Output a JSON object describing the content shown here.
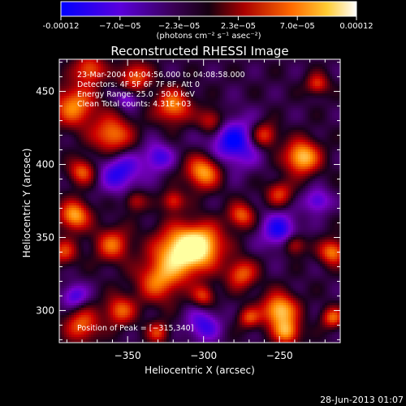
{
  "colorbar": {
    "ticks": [
      "-0.00012",
      "−7.0e−05",
      "−2.3e−05",
      "2.3e−05",
      "7.0e−05",
      "0.00012"
    ],
    "units": "(photons cm⁻² s⁻¹ asec⁻²)"
  },
  "title": "Reconstructed RHESSI Image",
  "annotations": {
    "time_range": "23-Mar-2004 04:04:56.000 to 04:08:58.000",
    "detectors": "Detectors: 4F 5F 6F 7F 8F, Att 0",
    "energy_range": "Energy Range: 25.0 - 50.0 keV",
    "clean_info": "Clean     Total counts: 4.31E+03",
    "peak_position": "Position of Peak = [−315,340]"
  },
  "footer_date": "28-Jun-2013 01:07",
  "chart_data": {
    "type": "heatmap",
    "title": "Reconstructed RHESSI Image",
    "xlabel": "Heliocentric X (arcsec)",
    "ylabel": "Heliocentric Y (arcsec)",
    "xlim": [
      -395,
      -210
    ],
    "ylim": [
      278,
      472
    ],
    "xticks": [
      -350,
      -300,
      -250
    ],
    "xtick_labels": [
      "−350",
      "−300",
      "−250"
    ],
    "yticks": [
      300,
      350,
      400,
      450
    ],
    "ytick_labels": [
      "300",
      "350",
      "400",
      "450"
    ],
    "colormap": [
      "#0000ff",
      "#7a00cc",
      "#1a001a",
      "#cc0000",
      "#ff8800",
      "#ffffa0"
    ],
    "value_range": [
      -0.00012,
      0.00012
    ],
    "peak": [
      -315,
      340
    ],
    "blobs": [
      [
        -315,
        340,
        12,
        1.0
      ],
      [
        -300,
        345,
        10,
        0.7
      ],
      [
        -360,
        345,
        8,
        0.6
      ],
      [
        -330,
        320,
        10,
        0.6
      ],
      [
        -385,
        365,
        7,
        0.8
      ],
      [
        -392,
        340,
        6,
        0.5
      ],
      [
        -380,
        395,
        6,
        0.6
      ],
      [
        -360,
        420,
        9,
        0.7
      ],
      [
        -385,
        440,
        10,
        0.7
      ],
      [
        -375,
        465,
        7,
        0.6
      ],
      [
        -345,
        460,
        7,
        0.6
      ],
      [
        -320,
        440,
        8,
        0.7
      ],
      [
        -300,
        395,
        8,
        0.8
      ],
      [
        -295,
        430,
        6,
        0.5
      ],
      [
        -260,
        420,
        6,
        0.6
      ],
      [
        -235,
        405,
        8,
        0.9
      ],
      [
        -250,
        380,
        6,
        0.5
      ],
      [
        -225,
        455,
        5,
        0.5
      ],
      [
        -215,
        340,
        6,
        0.7
      ],
      [
        -240,
        345,
        5,
        0.5
      ],
      [
        -275,
        325,
        7,
        0.6
      ],
      [
        -250,
        300,
        8,
        0.9
      ],
      [
        -245,
        285,
        6,
        0.7
      ],
      [
        -270,
        295,
        5,
        0.5
      ],
      [
        -355,
        300,
        7,
        0.6
      ],
      [
        -380,
        290,
        8,
        0.6
      ],
      [
        -330,
        285,
        5,
        0.5
      ],
      [
        -300,
        310,
        5,
        0.5
      ],
      [
        -345,
        375,
        5,
        0.4
      ],
      [
        -320,
        375,
        5,
        0.5
      ],
      [
        -275,
        365,
        6,
        0.6
      ],
      [
        -215,
        295,
        5,
        0.6
      ]
    ],
    "dips": [
      [
        -280,
        415,
        12,
        0.9
      ],
      [
        -355,
        395,
        10,
        0.8
      ],
      [
        -250,
        355,
        9,
        0.8
      ],
      [
        -300,
        290,
        8,
        0.7
      ],
      [
        -385,
        310,
        6,
        0.7
      ],
      [
        -225,
        375,
        6,
        0.7
      ],
      [
        -330,
        405,
        7,
        0.7
      ],
      [
        -350,
        445,
        5,
        0.6
      ]
    ]
  }
}
